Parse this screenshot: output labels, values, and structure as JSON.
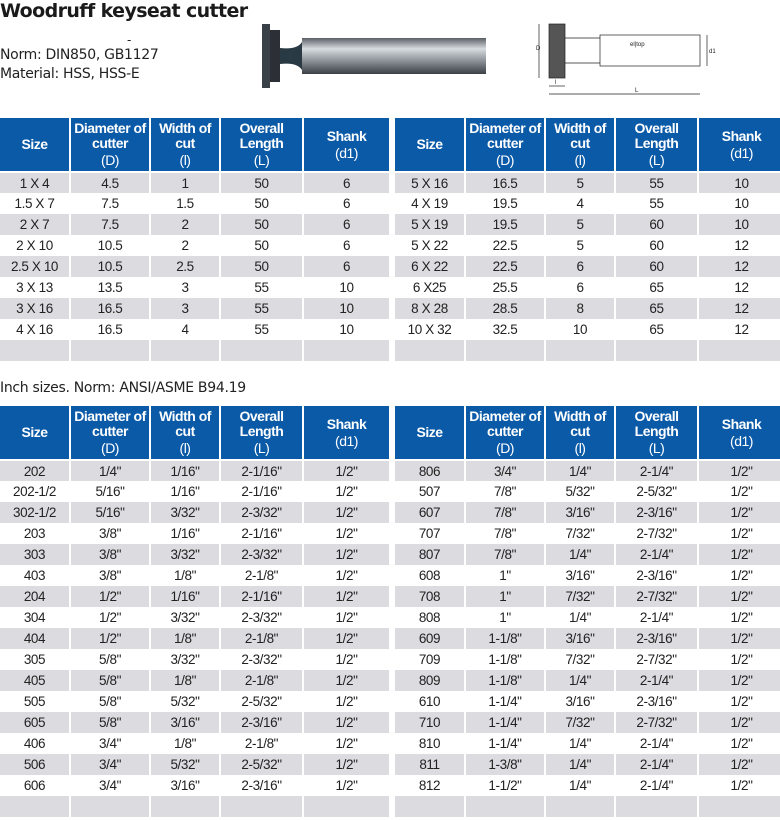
{
  "title": "Woodruff keyseat cutter",
  "dash": "-",
  "norm": "Norm: DIN850, GB1127",
  "material": "Material: HSS, HSS-E",
  "diagram": {
    "label_D": "D",
    "label_d1": "d1",
    "label_l": "l",
    "label_L": "L",
    "shank_text": "el|top"
  },
  "headers": [
    {
      "line1": "Size",
      "unit": ""
    },
    {
      "line1": "Diameter of cutter",
      "unit": "(D)"
    },
    {
      "line1": "Width of cut",
      "unit": "(l)"
    },
    {
      "line1": "Overall Length",
      "unit": "(L)"
    },
    {
      "line1": "Shank",
      "unit": "(d1)"
    }
  ],
  "inch_caption": "Inch sizes.  Norm: ANSI/ASME B94.19",
  "metric_left": [
    [
      "1 X 4",
      "4.5",
      "1",
      "50",
      "6"
    ],
    [
      "1.5 X 7",
      "7.5",
      "1.5",
      "50",
      "6"
    ],
    [
      "2 X 7",
      "7.5",
      "2",
      "50",
      "6"
    ],
    [
      "2 X 10",
      "10.5",
      "2",
      "50",
      "6"
    ],
    [
      "2.5 X 10",
      "10.5",
      "2.5",
      "50",
      "6"
    ],
    [
      "3 X 13",
      "13.5",
      "3",
      "55",
      "10"
    ],
    [
      "3 X 16",
      "16.5",
      "3",
      "55",
      "10"
    ],
    [
      "4 X 16",
      "16.5",
      "4",
      "55",
      "10"
    ],
    [
      "",
      "",
      "",
      "",
      ""
    ]
  ],
  "metric_right": [
    [
      "5 X 16",
      "16.5",
      "5",
      "55",
      "10"
    ],
    [
      "4 X 19",
      "19.5",
      "4",
      "55",
      "10"
    ],
    [
      "5 X 19",
      "19.5",
      "5",
      "60",
      "10"
    ],
    [
      "5 X 22",
      "22.5",
      "5",
      "60",
      "12"
    ],
    [
      "6 X 22",
      "22.5",
      "6",
      "60",
      "12"
    ],
    [
      "6 X25",
      "25.5",
      "6",
      "65",
      "12"
    ],
    [
      "8 X 28",
      "28.5",
      "8",
      "65",
      "12"
    ],
    [
      "10 X 32",
      "32.5",
      "10",
      "65",
      "12"
    ],
    [
      "",
      "",
      "",
      "",
      ""
    ]
  ],
  "inch_left": [
    [
      "202",
      "1/4\"",
      "1/16\"",
      "2-1/16\"",
      "1/2\""
    ],
    [
      "202-1/2",
      "5/16\"",
      "1/16\"",
      "2-1/16\"",
      "1/2\""
    ],
    [
      "302-1/2",
      "5/16\"",
      "3/32\"",
      "2-3/32\"",
      "1/2\""
    ],
    [
      "203",
      "3/8\"",
      "1/16\"",
      "2-1/16\"",
      "1/2\""
    ],
    [
      "303",
      "3/8\"",
      "3/32\"",
      "2-3/32\"",
      "1/2\""
    ],
    [
      "403",
      "3/8\"",
      "1/8\"",
      "2-1/8\"",
      "1/2\""
    ],
    [
      "204",
      "1/2\"",
      "1/16\"",
      "2-1/16\"",
      "1/2\""
    ],
    [
      "304",
      "1/2\"",
      "3/32\"",
      "2-3/32\"",
      "1/2\""
    ],
    [
      "404",
      "1/2\"",
      "1/8\"",
      "2-1/8\"",
      "1/2\""
    ],
    [
      "305",
      "5/8\"",
      "3/32\"",
      "2-3/32\"",
      "1/2\""
    ],
    [
      "405",
      "5/8\"",
      "1/8\"",
      "2-1/8\"",
      "1/2\""
    ],
    [
      "505",
      "5/8\"",
      "5/32\"",
      "2-5/32\"",
      "1/2\""
    ],
    [
      "605",
      "5/8\"",
      "3/16\"",
      "2-3/16\"",
      "1/2\""
    ],
    [
      "406",
      "3/4\"",
      "1/8\"",
      "2-1/8\"",
      "1/2\""
    ],
    [
      "506",
      "3/4\"",
      "5/32\"",
      "2-5/32\"",
      "1/2\""
    ],
    [
      "606",
      "3/4\"",
      "3/16\"",
      "2-3/16\"",
      "1/2\""
    ],
    [
      "",
      "",
      "",
      "",
      ""
    ]
  ],
  "inch_right": [
    [
      "806",
      "3/4\"",
      "1/4\"",
      "2-1/4\"",
      "1/2\""
    ],
    [
      "507",
      "7/8\"",
      "5/32\"",
      "2-5/32\"",
      "1/2\""
    ],
    [
      "607",
      "7/8\"",
      "3/16\"",
      "2-3/16\"",
      "1/2\""
    ],
    [
      "707",
      "7/8\"",
      "7/32\"",
      "2-7/32\"",
      "1/2\""
    ],
    [
      "807",
      "7/8\"",
      "1/4\"",
      "2-1/4\"",
      "1/2\""
    ],
    [
      "608",
      "1\"",
      "3/16\"",
      "2-3/16\"",
      "1/2\""
    ],
    [
      "708",
      "1\"",
      "7/32\"",
      "2-7/32\"",
      "1/2\""
    ],
    [
      "808",
      "1\"",
      "1/4\"",
      "2-1/4\"",
      "1/2\""
    ],
    [
      "609",
      "1-1/8\"",
      "3/16\"",
      "2-3/16\"",
      "1/2\""
    ],
    [
      "709",
      "1-1/8\"",
      "7/32\"",
      "2-7/32\"",
      "1/2\""
    ],
    [
      "809",
      "1-1/8\"",
      "1/4\"",
      "2-1/4\"",
      "1/2\""
    ],
    [
      "610",
      "1-1/4\"",
      "3/16\"",
      "2-3/16\"",
      "1/2\""
    ],
    [
      "710",
      "1-1/4\"",
      "7/32\"",
      "2-7/32\"",
      "1/2\""
    ],
    [
      "810",
      "1-1/4\"",
      "1/4\"",
      "2-1/4\"",
      "1/2\""
    ],
    [
      "811",
      "1-3/8\"",
      "1/4\"",
      "2-1/4\"",
      "1/2\""
    ],
    [
      "812",
      "1-1/2\"",
      "1/4\"",
      "2-1/4\"",
      "1/2\""
    ],
    [
      "",
      "",
      "",
      "",
      ""
    ]
  ]
}
